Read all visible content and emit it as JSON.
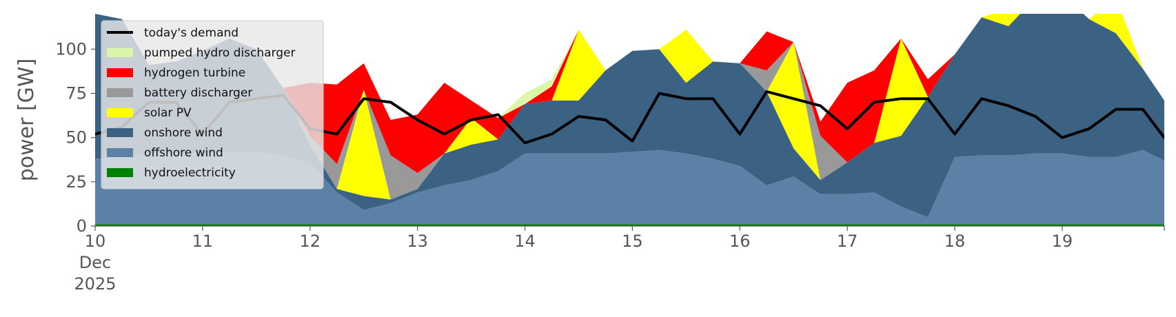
{
  "chart_data": {
    "type": "area",
    "ylabel": "power [GW]",
    "ylim": [
      0,
      120
    ],
    "yticks": [
      0,
      25,
      50,
      75,
      100
    ],
    "xlim": [
      0,
      9.95
    ],
    "xticks": [
      {
        "x": 0,
        "lines": [
          "10",
          "Dec",
          "2025"
        ]
      },
      {
        "x": 1,
        "lines": [
          "11"
        ]
      },
      {
        "x": 2,
        "lines": [
          "12"
        ]
      },
      {
        "x": 3,
        "lines": [
          "13"
        ]
      },
      {
        "x": 4,
        "lines": [
          "14"
        ]
      },
      {
        "x": 5,
        "lines": [
          "15"
        ]
      },
      {
        "x": 6,
        "lines": [
          "16"
        ]
      },
      {
        "x": 7,
        "lines": [
          "17"
        ]
      },
      {
        "x": 8,
        "lines": [
          "18"
        ]
      },
      {
        "x": 9,
        "lines": [
          "19"
        ]
      }
    ],
    "grid": false,
    "legend": "upper-left",
    "x": [
      0,
      0.25,
      0.5,
      0.75,
      1,
      1.25,
      1.5,
      1.75,
      2,
      2.25,
      2.5,
      2.75,
      3,
      3.25,
      3.5,
      3.75,
      4,
      4.25,
      4.5,
      4.75,
      5,
      5.25,
      5.5,
      5.75,
      6,
      6.25,
      6.5,
      6.75,
      7,
      7.25,
      7.5,
      7.75,
      8,
      8.25,
      8.5,
      8.75,
      9,
      9.25,
      9.5,
      9.75,
      9.95
    ],
    "series": [
      {
        "name": "hydroelectricity",
        "color": "#008000",
        "values": [
          1,
          1,
          1,
          1,
          1,
          1,
          1,
          1,
          1,
          1,
          1,
          1,
          1,
          1,
          1,
          1,
          1,
          1,
          1,
          1,
          1,
          1,
          1,
          1,
          1,
          1,
          1,
          1,
          1,
          1,
          1,
          1,
          1,
          1,
          1,
          1,
          1,
          1,
          1,
          1,
          1
        ]
      },
      {
        "name": "offshore wind",
        "color": "#5b82a6",
        "values": [
          37,
          38,
          40,
          40,
          40,
          41,
          41,
          39,
          35,
          18,
          8,
          12,
          18,
          22,
          25,
          30,
          40,
          40,
          40,
          40,
          41,
          42,
          40,
          37,
          33,
          22,
          27,
          17,
          17,
          18,
          10,
          4,
          38,
          39,
          39,
          40,
          40,
          38,
          38,
          42,
          36
        ]
      },
      {
        "name": "onshore wind",
        "color": "#3b6183",
        "values": [
          82,
          78,
          50,
          52,
          58,
          64,
          58,
          38,
          10,
          2,
          8,
          2,
          2,
          18,
          20,
          18,
          28,
          30,
          30,
          47,
          57,
          57,
          40,
          55,
          58,
          53,
          16,
          8,
          18,
          28,
          40,
          68,
          58,
          78,
          73,
          88,
          90,
          78,
          70,
          46,
          34
        ]
      },
      {
        "name": "solar PV",
        "color": "#ffff00",
        "values": [
          0,
          0,
          0,
          0,
          0,
          0,
          0,
          0,
          0,
          0,
          60,
          0,
          0,
          0,
          15,
          0,
          0,
          0,
          40,
          0,
          0,
          0,
          30,
          0,
          0,
          0,
          60,
          0,
          0,
          0,
          55,
          0,
          0,
          0,
          10,
          0,
          0,
          0,
          20,
          0,
          0
        ]
      },
      {
        "name": "battery discharger",
        "color": "#999999",
        "values": [
          0,
          0,
          0,
          0,
          0,
          0,
          0,
          0,
          5,
          14,
          0,
          25,
          9,
          0,
          0,
          0,
          0,
          0,
          0,
          0,
          0,
          0,
          0,
          0,
          0,
          12,
          0,
          25,
          0,
          0,
          0,
          0,
          0,
          0,
          0,
          0,
          0,
          0,
          0,
          0,
          0
        ]
      },
      {
        "name": "hydrogen turbine",
        "color": "#ff0000",
        "values": [
          0,
          0,
          0,
          0,
          0,
          0,
          0,
          0,
          30,
          45,
          15,
          20,
          33,
          40,
          10,
          12,
          0,
          8,
          0,
          0,
          0,
          0,
          0,
          0,
          0,
          22,
          0,
          8,
          45,
          41,
          0,
          10,
          0,
          0,
          0,
          0,
          0,
          0,
          0,
          0,
          0
        ]
      },
      {
        "name": "pumped hydro discharger",
        "color": "#d9f7a6",
        "values": [
          0,
          0,
          0,
          0,
          0,
          0,
          0,
          0,
          0,
          0,
          0,
          0,
          0,
          0,
          0,
          0,
          6,
          4,
          0,
          0,
          0,
          0,
          0,
          0,
          0,
          0,
          0,
          0,
          0,
          0,
          0,
          0,
          0,
          0,
          0,
          0,
          0,
          0,
          0,
          0,
          0
        ]
      }
    ],
    "demand": {
      "name": "today's demand",
      "color": "#000000",
      "values": [
        52,
        56,
        70,
        70,
        52,
        70,
        72,
        74,
        55,
        52,
        72,
        70,
        60,
        52,
        60,
        63,
        47,
        52,
        62,
        60,
        48,
        75,
        72,
        72,
        52,
        76,
        72,
        68,
        55,
        70,
        72,
        72,
        52,
        72,
        68,
        62,
        50,
        55,
        66,
        66,
        50
      ]
    },
    "legend_entries": [
      "today's demand",
      "pumped hydro discharger",
      "hydrogen turbine",
      "battery discharger",
      "solar PV",
      "onshore wind",
      "offshore wind",
      "hydroelectricity"
    ]
  }
}
